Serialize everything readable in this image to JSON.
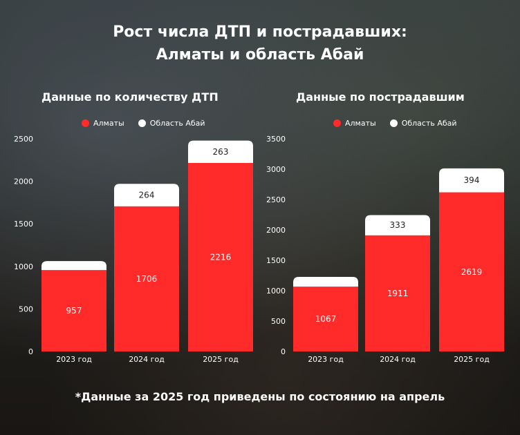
{
  "title_line1": "Рост числа ДТП и пострадавших:",
  "title_line2": "Алматы и область Абай",
  "footnote": "*Данные за 2025 год приведены по состоянию на апрель",
  "colors": {
    "almaty": "#ff2a2a",
    "abai": "#ffffff",
    "text": "#ffffff"
  },
  "chart_data": [
    {
      "type": "bar",
      "stacked": true,
      "title": "Данные по количеству ДТП",
      "categories": [
        "2023 год",
        "2024 год",
        "2025 год"
      ],
      "series": [
        {
          "name": "Алматы",
          "values": [
            957,
            1706,
            2216
          ],
          "color": "#ff2a2a"
        },
        {
          "name": "Область Абай",
          "values": [
            105,
            264,
            263
          ],
          "color": "#ffffff"
        }
      ],
      "data_labels": [
        [
          "957",
          "1706",
          "2216"
        ],
        [
          "",
          "264",
          "263"
        ]
      ],
      "y_ticks": [
        0,
        500,
        1000,
        1500,
        2000,
        2500
      ],
      "ylim": [
        0,
        2500
      ],
      "legend": "top"
    },
    {
      "type": "bar",
      "stacked": true,
      "title": "Данные по пострадавшим",
      "categories": [
        "2023 год",
        "2024 год",
        "2025 год"
      ],
      "series": [
        {
          "name": "Алматы",
          "values": [
            1067,
            1911,
            2619
          ],
          "color": "#ff2a2a"
        },
        {
          "name": "Область Абай",
          "values": [
            160,
            333,
            394
          ],
          "color": "#ffffff"
        }
      ],
      "data_labels": [
        [
          "1067",
          "1911",
          "2619"
        ],
        [
          "",
          "333",
          "394"
        ]
      ],
      "y_ticks": [
        0,
        500,
        1000,
        1500,
        2000,
        2500,
        3000,
        3500
      ],
      "ylim": [
        0,
        3500
      ],
      "legend": "top"
    }
  ]
}
